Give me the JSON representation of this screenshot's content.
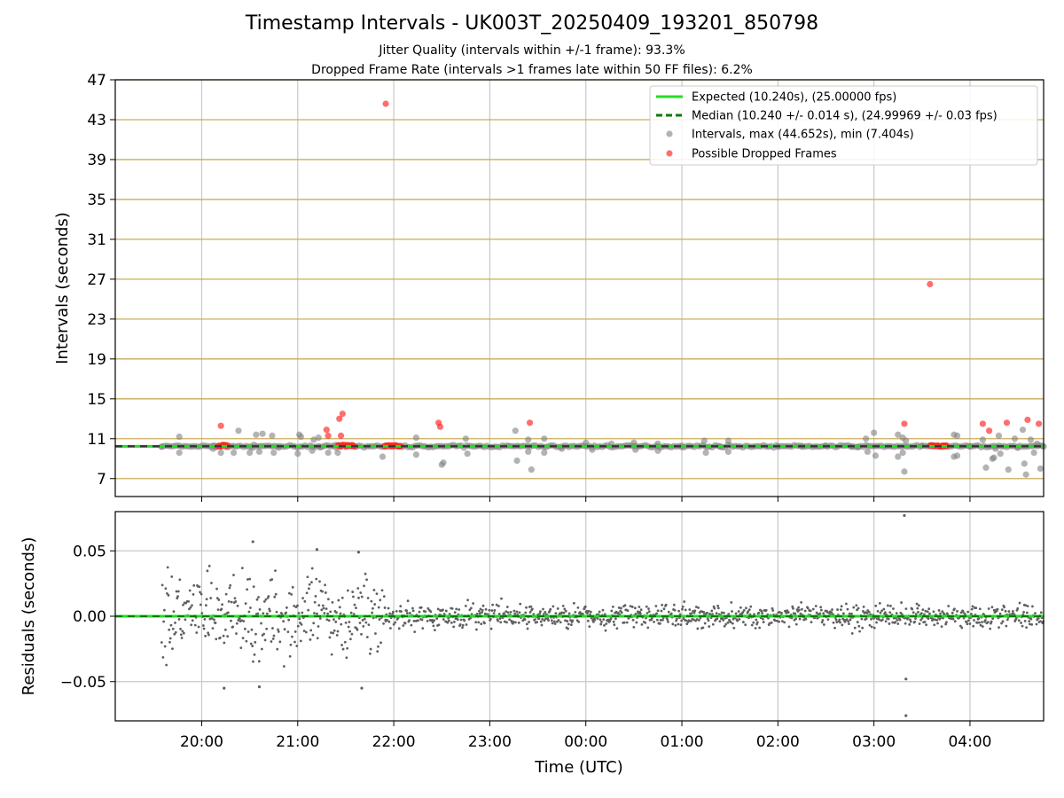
{
  "figure": {
    "title": "Timestamp Intervals - UK003T_20250409_193201_850798",
    "subtitle_1": "Jitter Quality (intervals within +/-1 frame): 93.3%",
    "subtitle_2": "Dropped Frame Rate (intervals >1 frames late within 50 FF files): 6.2%"
  },
  "colors": {
    "expected_line": "#22dd22",
    "median_line": "#0a7a0a",
    "intervals_points": "#808080",
    "dropped_points": "#ff2020",
    "frame_grid": "#c9ad5a",
    "grid": "#c8c8c8",
    "residual_points": "#606060"
  },
  "chart_data": [
    {
      "type": "scatter",
      "panel": "top",
      "ylabel": "Intervals (seconds)",
      "ylim": [
        5.2,
        47
      ],
      "yticks": [
        "7",
        "11",
        "15",
        "19",
        "23",
        "27",
        "31",
        "35",
        "39",
        "43",
        "47"
      ],
      "xlim": [
        "19:06",
        "04:46"
      ],
      "frame_gridlines": [
        7,
        11,
        15,
        19,
        23,
        27,
        31,
        35,
        39,
        43,
        47
      ],
      "legend_position": "top-right",
      "legend": [
        {
          "label": "Expected (10.240s), (25.00000 fps)",
          "style": "line"
        },
        {
          "label": "Median (10.240 +/- 0.014 s), (24.99969 +/- 0.03 fps)",
          "style": "dashed"
        },
        {
          "label": "Intervals, max (44.652s), min (7.404s)",
          "style": "gray-dot"
        },
        {
          "label": "Possible Dropped Frames",
          "style": "red-dot"
        }
      ],
      "expected": 10.24,
      "median": 10.24,
      "series": [
        {
          "name": "Possible Dropped Frames",
          "points": [
            [
              "20:12",
              12.3
            ],
            [
              "21:18",
              11.9
            ],
            [
              "21:19",
              11.3
            ],
            [
              "21:26",
              13.0
            ],
            [
              "21:28",
              13.5
            ],
            [
              "21:27",
              11.3
            ],
            [
              "21:55",
              44.6
            ],
            [
              "22:28",
              12.6
            ],
            [
              "22:29",
              12.2
            ],
            [
              "23:25",
              12.6
            ],
            [
              "03:19",
              12.5
            ],
            [
              "03:35",
              26.5
            ],
            [
              "04:08",
              12.5
            ],
            [
              "04:12",
              11.8
            ],
            [
              "04:23",
              12.6
            ],
            [
              "04:36",
              12.9
            ],
            [
              "04:43",
              12.5
            ]
          ],
          "clusters": [
            {
              "from": "20:10",
              "to": "20:17",
              "value": 10.3
            },
            {
              "from": "21:25",
              "to": "21:36",
              "value": 10.3
            },
            {
              "from": "21:54",
              "to": "22:05",
              "value": 10.3
            },
            {
              "from": "03:35",
              "to": "03:46",
              "value": 10.3
            }
          ]
        },
        {
          "name": "Intervals, max (44.652s), min (7.404s)",
          "points": [
            [
              "19:35",
              10.2
            ],
            [
              "19:46",
              11.2
            ],
            [
              "19:46",
              9.6
            ],
            [
              "20:07",
              10.0
            ],
            [
              "20:12",
              9.6
            ],
            [
              "20:08",
              10.3
            ],
            [
              "20:20",
              9.6
            ],
            [
              "20:23",
              11.8
            ],
            [
              "20:32",
              10.1
            ],
            [
              "20:30",
              9.6
            ],
            [
              "20:34",
              11.4
            ],
            [
              "20:38",
              11.5
            ],
            [
              "20:36",
              9.7
            ],
            [
              "20:44",
              11.3
            ],
            [
              "20:45",
              9.6
            ],
            [
              "20:48",
              10.1
            ],
            [
              "21:00",
              9.5
            ],
            [
              "21:01",
              11.4
            ],
            [
              "21:02",
              11.2
            ],
            [
              "21:09",
              9.8
            ],
            [
              "21:10",
              10.9
            ],
            [
              "21:13",
              11.1
            ],
            [
              "21:14",
              10.2
            ],
            [
              "21:19",
              9.6
            ],
            [
              "21:24",
              10.1
            ],
            [
              "21:25",
              9.6
            ],
            [
              "21:53",
              9.2
            ],
            [
              "22:14",
              11.1
            ],
            [
              "22:14",
              9.4
            ],
            [
              "22:30",
              8.4
            ],
            [
              "22:31",
              8.6
            ],
            [
              "22:45",
              11.0
            ],
            [
              "22:46",
              9.5
            ],
            [
              "23:16",
              11.8
            ],
            [
              "23:17",
              8.8
            ],
            [
              "23:24",
              10.9
            ],
            [
              "23:24",
              9.7
            ],
            [
              "23:26",
              7.9
            ],
            [
              "23:34",
              11.0
            ],
            [
              "23:34",
              9.6
            ],
            [
              "23:45",
              10.0
            ],
            [
              "00:00",
              10.6
            ],
            [
              "00:04",
              9.9
            ],
            [
              "00:16",
              10.5
            ],
            [
              "00:30",
              10.6
            ],
            [
              "00:31",
              9.9
            ],
            [
              "00:45",
              10.5
            ],
            [
              "00:45",
              9.8
            ],
            [
              "01:00",
              10.3
            ],
            [
              "01:14",
              10.8
            ],
            [
              "01:15",
              9.6
            ],
            [
              "01:24",
              10.2
            ],
            [
              "01:29",
              10.8
            ],
            [
              "01:29",
              9.7
            ],
            [
              "02:00",
              10.2
            ],
            [
              "02:15",
              10.2
            ],
            [
              "02:30",
              10.3
            ],
            [
              "02:46",
              10.2
            ],
            [
              "02:50",
              10.2
            ],
            [
              "02:55",
              11.0
            ],
            [
              "02:56",
              9.7
            ],
            [
              "03:00",
              11.6
            ],
            [
              "03:01",
              9.3
            ],
            [
              "03:15",
              11.4
            ],
            [
              "03:15",
              9.2
            ],
            [
              "03:18",
              11.1
            ],
            [
              "03:18",
              9.6
            ],
            [
              "03:19",
              7.7
            ],
            [
              "03:20",
              10.8
            ],
            [
              "03:30",
              10.3
            ],
            [
              "03:45",
              10.3
            ],
            [
              "03:50",
              11.4
            ],
            [
              "03:52",
              11.3
            ],
            [
              "03:50",
              9.2
            ],
            [
              "03:52",
              9.3
            ],
            [
              "04:00",
              10.2
            ],
            [
              "04:08",
              10.9
            ],
            [
              "04:10",
              8.1
            ],
            [
              "04:14",
              9.0
            ],
            [
              "04:15",
              9.1
            ],
            [
              "04:16",
              10.0
            ],
            [
              "04:18",
              11.3
            ],
            [
              "04:19",
              9.5
            ],
            [
              "04:24",
              7.9
            ],
            [
              "04:28",
              11.0
            ],
            [
              "04:30",
              10.1
            ],
            [
              "04:33",
              11.9
            ],
            [
              "04:34",
              8.5
            ],
            [
              "04:35",
              7.4
            ],
            [
              "04:38",
              10.9
            ],
            [
              "04:40",
              9.6
            ],
            [
              "04:42",
              10.5
            ],
            [
              "04:44",
              8.0
            ],
            [
              "04:46",
              10.2
            ]
          ]
        }
      ]
    },
    {
      "type": "scatter",
      "panel": "bottom",
      "ylabel": "Residuals (seconds)",
      "xlabel": "Time (UTC)",
      "ylim": [
        -0.08,
        0.08
      ],
      "yticks": [
        "0.05",
        "0.00",
        "−0.05"
      ],
      "xticks": [
        "20:00",
        "21:00",
        "22:00",
        "23:00",
        "00:00",
        "01:00",
        "02:00",
        "03:00",
        "04:00"
      ],
      "xlim": [
        "19:06",
        "04:46"
      ],
      "expected": 0.0,
      "series": [
        {
          "name": "Residuals",
          "x_range": [
            "19:35",
            "04:46"
          ],
          "note_points": [
            [
              "20:32",
              0.057
            ],
            [
              "21:12",
              0.051
            ],
            [
              "21:38",
              0.049
            ],
            [
              "20:14",
              -0.055
            ],
            [
              "20:36",
              -0.054
            ],
            [
              "21:40",
              -0.055
            ],
            [
              "03:19",
              0.077
            ],
            [
              "03:20",
              -0.048
            ],
            [
              "03:20",
              -0.076
            ]
          ],
          "segments": [
            {
              "from": "19:35",
              "to": "21:55",
              "spread": 0.03
            },
            {
              "from": "21:55",
              "to": "04:46",
              "spread": 0.009
            }
          ]
        }
      ]
    }
  ]
}
